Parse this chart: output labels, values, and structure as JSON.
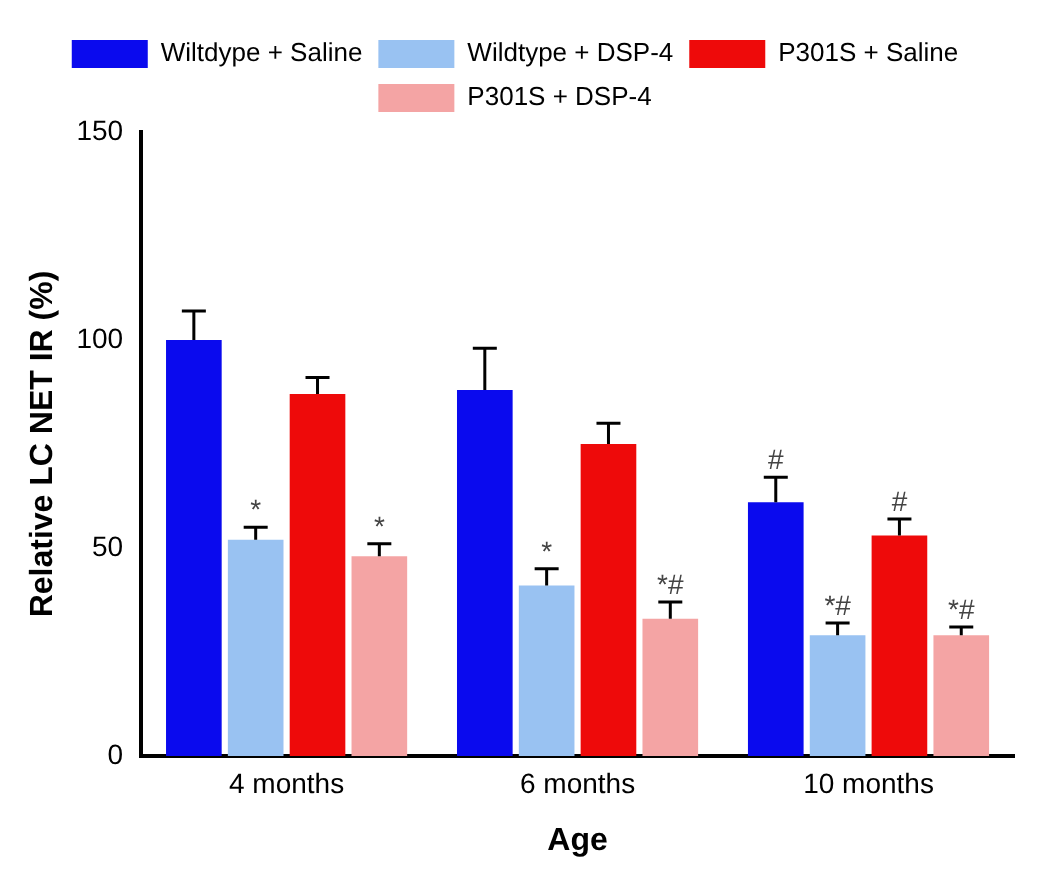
{
  "chart_data": {
    "type": "bar",
    "xlabel": "Age",
    "ylabel": "Relative LC NET IR (%)",
    "categories": [
      "4 months",
      "6 months",
      "10 months"
    ],
    "series": [
      {
        "name": "Wiltdype + Saline",
        "color": "#0a0aee",
        "values": [
          100,
          88,
          61
        ],
        "errors": [
          [
            100,
            107
          ],
          [
            88,
            98
          ],
          [
            61,
            67
          ]
        ],
        "value_labels": [
          null,
          null,
          "#"
        ]
      },
      {
        "name": "Wildtype + DSP-4",
        "color": "#99c2f2",
        "values": [
          52,
          41,
          29
        ],
        "errors": [
          [
            52,
            55
          ],
          [
            41,
            45
          ],
          [
            29,
            32
          ]
        ],
        "value_labels": [
          "*",
          "*",
          "*#"
        ]
      },
      {
        "name": "P301S + Saline",
        "color": "#ee0a0a",
        "values": [
          87,
          75,
          53
        ],
        "errors": [
          [
            87,
            91
          ],
          [
            75,
            80
          ],
          [
            53,
            57
          ]
        ],
        "value_labels": [
          null,
          null,
          "#"
        ]
      },
      {
        "name": "P301S + DSP-4",
        "color": "#f4a4a4",
        "values": [
          48,
          33,
          29
        ],
        "errors": [
          [
            48,
            51
          ],
          [
            33,
            37
          ],
          [
            29,
            31
          ]
        ],
        "value_labels": [
          "*",
          "*#",
          "*#"
        ]
      }
    ],
    "ylim": [
      0,
      150
    ],
    "yticks": [
      0,
      50,
      100,
      150
    ],
    "grid": false,
    "legend": "top"
  }
}
